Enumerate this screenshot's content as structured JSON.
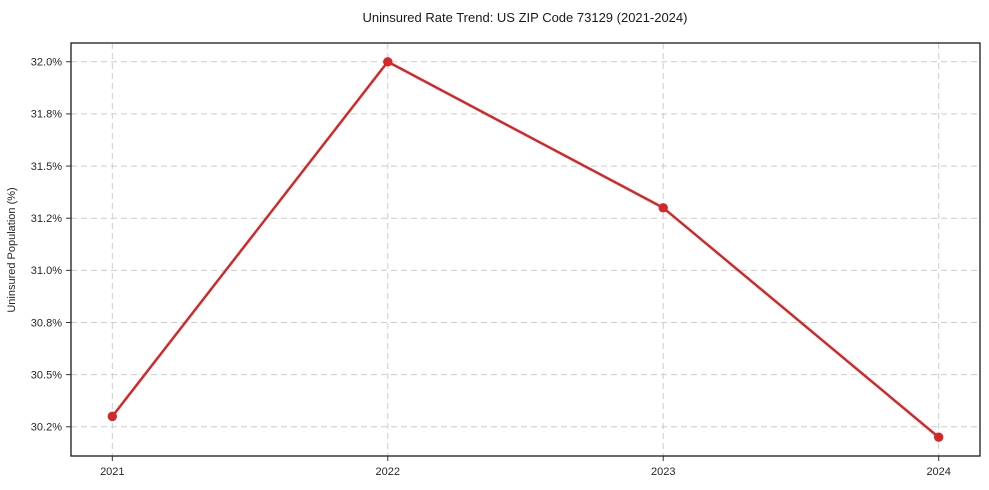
{
  "chart_data": {
    "type": "line",
    "title": "Uninsured Rate Trend: US ZIP Code 73129 (2021-2024)",
    "xlabel": "",
    "ylabel": "Uninsured Population (%)",
    "x": [
      2021,
      2022,
      2023,
      2024
    ],
    "xtick_labels": [
      "2021",
      "2022",
      "2023",
      "2024"
    ],
    "series": [
      {
        "name": "Uninsured Rate",
        "values": [
          30.3,
          32.0,
          31.3,
          30.2
        ]
      }
    ],
    "yticks": [
      30.25,
      30.5,
      30.75,
      31.0,
      31.25,
      31.5,
      31.75,
      32.0
    ],
    "ytick_labels": [
      "30.2%",
      "30.5%",
      "30.8%",
      "31.0%",
      "31.2%",
      "31.5%",
      "31.8%",
      "32.0%"
    ],
    "xlim": [
      2020.85,
      2024.15
    ],
    "ylim": [
      30.11,
      32.09
    ],
    "grid": true,
    "grid_style": "dashed",
    "legend": false,
    "colors": {
      "line": "#d62728",
      "marker": "#d62728",
      "grid": "#cccccc",
      "spine": "#1a1a1a",
      "tick": "#333333",
      "background": "#ffffff"
    }
  }
}
